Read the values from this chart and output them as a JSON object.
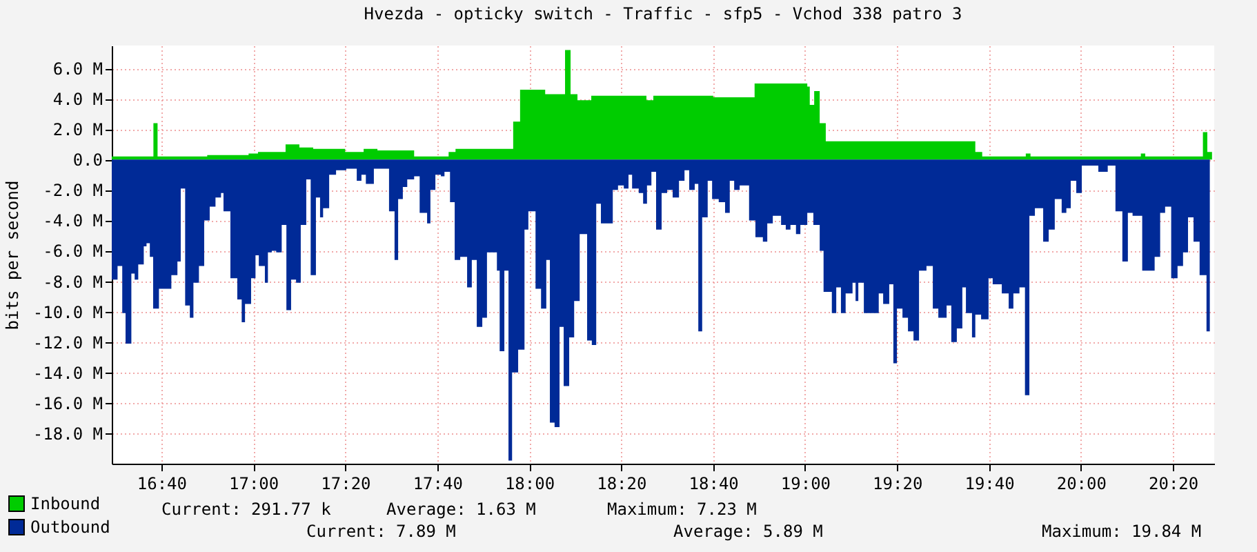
{
  "chart_data": {
    "type": "area",
    "title": "Hvezda - opticky switch - Traffic - sfp5 - Vchod 338 patro 3",
    "ylabel": "bits per second",
    "xlim": [
      16.487,
      20.483
    ],
    "ylim": [
      -20,
      7.5
    ],
    "xticks": [
      {
        "value": 16.6667,
        "label": "16:40"
      },
      {
        "value": 17,
        "label": "17:00"
      },
      {
        "value": 17.3333,
        "label": "17:20"
      },
      {
        "value": 17.6667,
        "label": "17:40"
      },
      {
        "value": 18,
        "label": "18:00"
      },
      {
        "value": 18.3333,
        "label": "18:20"
      },
      {
        "value": 18.6667,
        "label": "18:40"
      },
      {
        "value": 19,
        "label": "19:00"
      },
      {
        "value": 19.3333,
        "label": "19:20"
      },
      {
        "value": 19.6667,
        "label": "19:40"
      },
      {
        "value": 20,
        "label": "20:00"
      },
      {
        "value": 20.3333,
        "label": "20:20"
      }
    ],
    "yticks": [
      {
        "value": 6,
        "label": "6.0 M"
      },
      {
        "value": 4,
        "label": "4.0 M"
      },
      {
        "value": 2,
        "label": "2.0 M"
      },
      {
        "value": 0,
        "label": "0.0"
      },
      {
        "value": -2,
        "label": "-2.0 M"
      },
      {
        "value": -4,
        "label": "-4.0 M"
      },
      {
        "value": -6,
        "label": "-6.0 M"
      },
      {
        "value": -8,
        "label": "-8.0 M"
      },
      {
        "value": -10,
        "label": "-10.0 M"
      },
      {
        "value": -12,
        "label": "-12.0 M"
      },
      {
        "value": -14,
        "label": "-14.0 M"
      },
      {
        "value": -16,
        "label": "-16.0 M"
      },
      {
        "value": -18,
        "label": "-18.0 M"
      }
    ],
    "grid": true,
    "legend": "bottom left",
    "annotations": [
      "Current: 291.77 k",
      "Average: 1.63 M",
      "Maximum: 7.23 M",
      "Current: 7.89 M",
      "Average: 5.89 M",
      "Maximum: 19.84 M"
    ],
    "series": [
      {
        "name": "Inbound",
        "color": "#00cc00",
        "x": [
          16.487,
          16.638,
          16.653,
          16.833,
          16.983,
          17.017,
          17.117,
          17.167,
          17.217,
          17.333,
          17.4,
          17.45,
          17.5,
          17.583,
          17.708,
          17.733,
          17.942,
          17.967,
          18.058,
          18.13,
          18.15,
          18.175,
          18.225,
          18.425,
          18.45,
          18.667,
          18.817,
          19.008,
          19.017,
          19.033,
          19.053,
          19.075,
          19.617,
          19.642,
          19.8,
          19.817,
          20.217,
          20.233,
          20.442,
          20.458,
          20.475
        ],
        "values": [
          0.2,
          2.4,
          0.2,
          0.3,
          0.4,
          0.5,
          1.0,
          0.8,
          0.7,
          0.5,
          0.7,
          0.6,
          0.6,
          0.2,
          0.5,
          0.7,
          2.5,
          4.6,
          4.3,
          7.2,
          4.3,
          3.9,
          4.2,
          3.9,
          4.2,
          4.1,
          5.0,
          4.8,
          3.6,
          4.5,
          2.4,
          1.2,
          0.5,
          0.2,
          0.4,
          0.2,
          0.4,
          0.2,
          1.8,
          0.5,
          0.3
        ]
      },
      {
        "name": "Outbound",
        "color": "#002a97",
        "x": [
          16.487,
          16.508,
          16.525,
          16.537,
          16.558,
          16.57,
          16.583,
          16.603,
          16.613,
          16.625,
          16.637,
          16.658,
          16.703,
          16.725,
          16.737,
          16.753,
          16.77,
          16.783,
          16.803,
          16.822,
          16.842,
          16.863,
          16.883,
          16.892,
          16.917,
          16.942,
          16.958,
          16.97,
          16.992,
          17.008,
          17.02,
          17.042,
          17.053,
          17.067,
          17.083,
          17.103,
          17.12,
          17.137,
          17.155,
          17.172,
          17.192,
          17.208,
          17.227,
          17.242,
          17.253,
          17.275,
          17.3,
          17.337,
          17.375,
          17.392,
          17.408,
          17.437,
          17.492,
          17.512,
          17.525,
          17.542,
          17.558,
          17.583,
          17.603,
          17.63,
          17.642,
          17.66,
          17.68,
          17.693,
          17.713,
          17.73,
          17.75,
          17.775,
          17.792,
          17.81,
          17.83,
          17.847,
          17.883,
          17.893,
          17.91,
          17.925,
          17.938,
          17.96,
          17.983,
          17.997,
          18.023,
          18.043,
          18.062,
          18.075,
          18.092,
          18.11,
          18.125,
          18.145,
          18.163,
          18.183,
          18.21,
          18.227,
          18.243,
          18.26,
          18.303,
          18.322,
          18.343,
          18.36,
          18.373,
          18.397,
          18.413,
          18.427,
          18.443,
          18.46,
          18.48,
          18.5,
          18.52,
          18.543,
          18.563,
          18.58,
          18.6,
          18.613,
          18.627,
          18.647,
          18.663,
          18.687,
          18.71,
          18.727,
          18.743,
          18.763,
          18.797,
          18.82,
          18.847,
          18.863,
          18.883,
          18.913,
          18.93,
          18.947,
          18.967,
          18.983,
          19.008,
          19.03,
          19.053,
          19.067,
          19.097,
          19.113,
          19.13,
          19.147,
          19.172,
          19.183,
          19.193,
          19.213,
          19.267,
          19.283,
          19.305,
          19.32,
          19.333,
          19.353,
          19.373,
          19.393,
          19.413,
          19.44,
          19.463,
          19.483,
          19.513,
          19.53,
          19.55,
          19.57,
          19.583,
          19.605,
          19.617,
          19.638,
          19.665,
          19.68,
          19.713,
          19.738,
          19.755,
          19.777,
          19.797,
          19.813,
          19.833,
          19.863,
          19.883,
          19.905,
          19.93,
          19.947,
          19.963,
          19.983,
          20.003,
          20.063,
          20.097,
          20.125,
          20.15,
          20.17,
          20.187,
          20.222,
          20.267,
          20.287,
          20.305,
          20.327,
          20.35,
          20.37,
          20.388,
          20.408,
          20.43,
          20.455,
          20.467
        ],
        "values": [
          -7.9,
          -7.0,
          -10.1,
          -12.1,
          -7.5,
          -7.9,
          -6.9,
          -5.7,
          -5.5,
          -6.4,
          -9.8,
          -8.5,
          -7.6,
          -6.7,
          -1.9,
          -9.6,
          -10.4,
          -8.1,
          -7.0,
          -4.0,
          -3.1,
          -2.5,
          -2.2,
          -3.4,
          -7.8,
          -9.2,
          -10.7,
          -9.5,
          -7.8,
          -6.3,
          -7.0,
          -8.1,
          -6.1,
          -6.0,
          -6.1,
          -4.3,
          -9.9,
          -7.9,
          -8.1,
          -4.3,
          -1.3,
          -7.6,
          -2.5,
          -3.8,
          -3.2,
          -1.0,
          -0.7,
          -0.6,
          -1.4,
          -1.0,
          -1.6,
          -0.6,
          -3.4,
          -6.6,
          -2.6,
          -1.8,
          -1.3,
          -1.1,
          -3.5,
          -4.2,
          -2.0,
          -1.0,
          -1.1,
          -0.8,
          -2.8,
          -6.6,
          -6.4,
          -8.4,
          -6.6,
          -11.0,
          -10.4,
          -6.1,
          -7.3,
          -12.6,
          -7.3,
          -19.8,
          -14.0,
          -12.5,
          -4.6,
          -3.4,
          -8.5,
          -9.8,
          -6.6,
          -17.3,
          -17.6,
          -11.0,
          -14.9,
          -11.7,
          -9.3,
          -4.9,
          -11.9,
          -12.2,
          -2.9,
          -4.2,
          -2.0,
          -1.7,
          -1.9,
          -1.0,
          -1.9,
          -2.2,
          -2.9,
          -1.7,
          -0.8,
          -4.6,
          -2.2,
          -2.0,
          -2.5,
          -1.4,
          -0.7,
          -2.0,
          -1.6,
          -11.3,
          -3.8,
          -1.4,
          -2.6,
          -2.8,
          -3.5,
          -1.4,
          -2.0,
          -1.7,
          -4.0,
          -5.1,
          -5.4,
          -4.2,
          -3.7,
          -4.3,
          -4.6,
          -4.3,
          -4.9,
          -4.3,
          -3.5,
          -4.3,
          -6.0,
          -8.7,
          -10.1,
          -8.4,
          -10.1,
          -8.8,
          -8.1,
          -9.3,
          -8.1,
          -10.1,
          -8.8,
          -9.5,
          -8.2,
          -13.4,
          -9.8,
          -10.4,
          -11.3,
          -11.9,
          -7.3,
          -7.0,
          -9.8,
          -10.4,
          -9.6,
          -12.0,
          -11.1,
          -8.4,
          -10.1,
          -11.7,
          -10.2,
          -10.5,
          -7.8,
          -8.2,
          -8.8,
          -9.8,
          -8.8,
          -8.4,
          -15.5,
          -3.7,
          -3.2,
          -5.4,
          -4.6,
          -2.6,
          -3.5,
          -3.2,
          -1.4,
          -2.2,
          -0.4,
          -0.8,
          -0.4,
          -3.4,
          -6.7,
          -3.5,
          -3.7,
          -7.3,
          -6.4,
          -3.5,
          -3.1,
          -7.8,
          -7.0,
          -6.1,
          -3.8,
          -5.4,
          -7.6,
          -11.3,
          -7.9
        ]
      }
    ]
  }
}
